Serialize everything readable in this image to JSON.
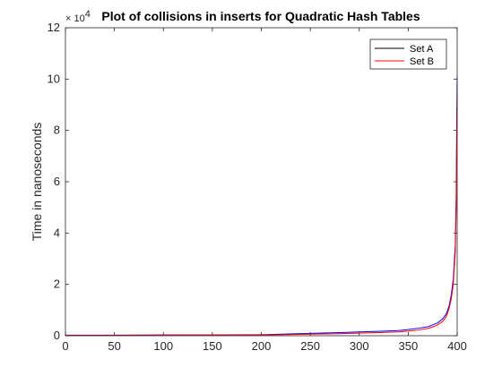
{
  "chart_data": {
    "type": "line",
    "title": "Plot of collisions in inserts for Quadratic Hash Tables",
    "xlabel": "",
    "ylabel": "Time in nanoseconds",
    "xlim": [
      0,
      400
    ],
    "ylim": [
      0,
      120000
    ],
    "y_exponent_label": "× 10",
    "y_exponent_power": "4",
    "x_ticks": [
      0,
      50,
      100,
      150,
      200,
      250,
      300,
      350,
      400
    ],
    "y_ticks": [
      0,
      20000,
      40000,
      60000,
      80000,
      100000,
      120000
    ],
    "y_tick_labels": [
      "0",
      "2",
      "4",
      "6",
      "8",
      "10",
      "12"
    ],
    "grid": false,
    "legend_position": "top-right",
    "series": [
      {
        "name": "Set A",
        "color": "#0000ff",
        "x": [
          0,
          50,
          100,
          150,
          200,
          220,
          250,
          280,
          300,
          320,
          340,
          350,
          360,
          370,
          375,
          380,
          385,
          388,
          390,
          392,
          394,
          396,
          398,
          399,
          399.5,
          400
        ],
        "y": [
          200,
          200,
          300,
          300,
          400,
          600,
          900,
          1200,
          1500,
          1700,
          2000,
          2400,
          2900,
          3500,
          4200,
          5000,
          6500,
          8000,
          9500,
          12000,
          16000,
          22000,
          35000,
          55000,
          80000,
          101000
        ]
      },
      {
        "name": "Set B",
        "color": "#ff0000",
        "x": [
          0,
          50,
          100,
          150,
          200,
          220,
          250,
          280,
          300,
          320,
          340,
          350,
          360,
          370,
          375,
          380,
          385,
          388,
          390,
          392,
          394,
          396,
          398,
          399,
          399.5,
          400
        ],
        "y": [
          150,
          150,
          200,
          250,
          300,
          400,
          600,
          800,
          1000,
          1200,
          1500,
          1800,
          2200,
          2800,
          3400,
          4200,
          5500,
          7000,
          8500,
          11000,
          14500,
          20000,
          32000,
          50000,
          72000,
          95000
        ]
      }
    ]
  }
}
